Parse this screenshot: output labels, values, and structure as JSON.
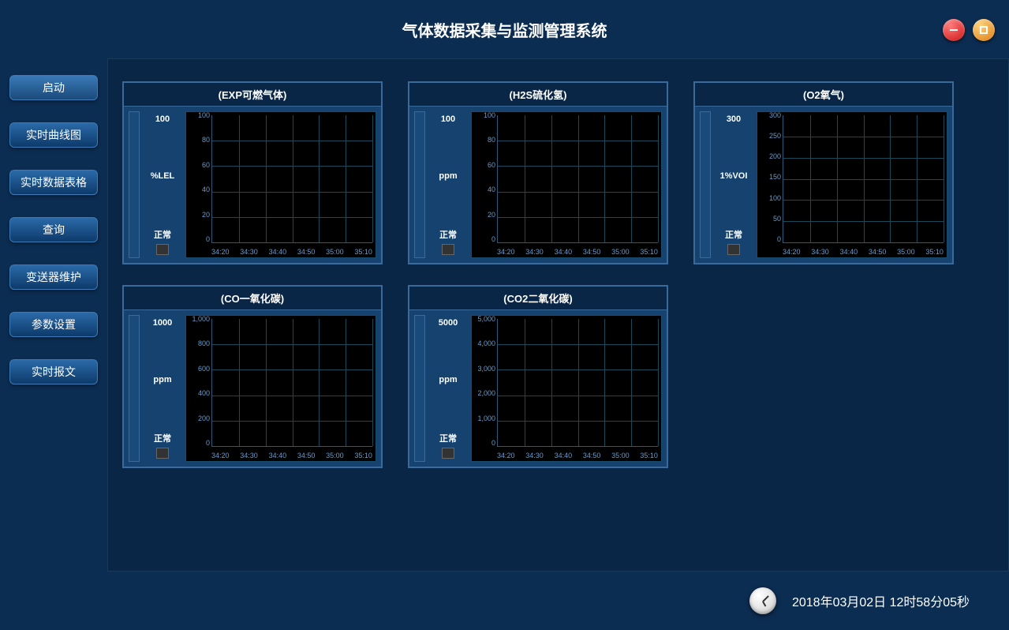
{
  "app": {
    "title": "气体数据采集与监测管理系统"
  },
  "sidebar": {
    "items": [
      {
        "label": "启动"
      },
      {
        "label": "实时曲线图"
      },
      {
        "label": "实时数据表格"
      },
      {
        "label": "查询"
      },
      {
        "label": "变送器维护"
      },
      {
        "label": "参数设置"
      },
      {
        "label": "实时报文"
      }
    ]
  },
  "panels": [
    {
      "title": "(EXP可燃气体)",
      "value": "100",
      "unit": "%LEL",
      "status": "正常",
      "ymax": 100,
      "yticks": [
        "100",
        "80",
        "60",
        "40",
        "20",
        "0"
      ],
      "xticks": [
        "34:20",
        "34:30",
        "34:40",
        "34:50",
        "35:00",
        "35:10"
      ],
      "grid_color": "#1a4a5a",
      "bg_color": "#000000"
    },
    {
      "title": "(H2S硫化氢)",
      "value": "100",
      "unit": "ppm",
      "status": "正常",
      "ymax": 100,
      "yticks": [
        "100",
        "80",
        "60",
        "40",
        "20",
        "0"
      ],
      "xticks": [
        "34:20",
        "34:30",
        "34:40",
        "34:50",
        "35:00",
        "35:10"
      ],
      "grid_color": "#1a4a5a",
      "bg_color": "#000000"
    },
    {
      "title": "(O2氧气)",
      "value": "300",
      "unit": "1%VOI",
      "status": "正常",
      "ymax": 300,
      "yticks": [
        "300",
        "250",
        "200",
        "150",
        "100",
        "50",
        "0"
      ],
      "xticks": [
        "34:20",
        "34:30",
        "34:40",
        "34:50",
        "35:00",
        "35:10"
      ],
      "grid_color": "#1a4a5a",
      "bg_color": "#000000"
    },
    {
      "title": "(CO一氧化碳)",
      "value": "1000",
      "unit": "ppm",
      "status": "正常",
      "ymax": 1000,
      "yticks": [
        "1,000",
        "800",
        "600",
        "400",
        "200",
        "0"
      ],
      "xticks": [
        "34:20",
        "34:30",
        "34:40",
        "34:50",
        "35:00",
        "35:10"
      ],
      "grid_color": "#1a4a5a",
      "bg_color": "#000000"
    },
    {
      "title": "(CO2二氧化碳)",
      "value": "5000",
      "unit": "ppm",
      "status": "正常",
      "ymax": 5000,
      "yticks": [
        "5,000",
        "4,000",
        "3,000",
        "2,000",
        "1,000",
        "0"
      ],
      "xticks": [
        "34:20",
        "34:30",
        "34:40",
        "34:50",
        "35:00",
        "35:10"
      ],
      "grid_color": "#1a4a5a",
      "bg_color": "#000000"
    }
  ],
  "statusbar": {
    "datetime": "2018年03月02日 12时58分05秒"
  },
  "colors": {
    "background": "#0c2d52",
    "panel_bg": "#0a2647",
    "panel_body": "#15426e",
    "border": "#3a6a9a",
    "axis_text": "#6a9aca"
  }
}
